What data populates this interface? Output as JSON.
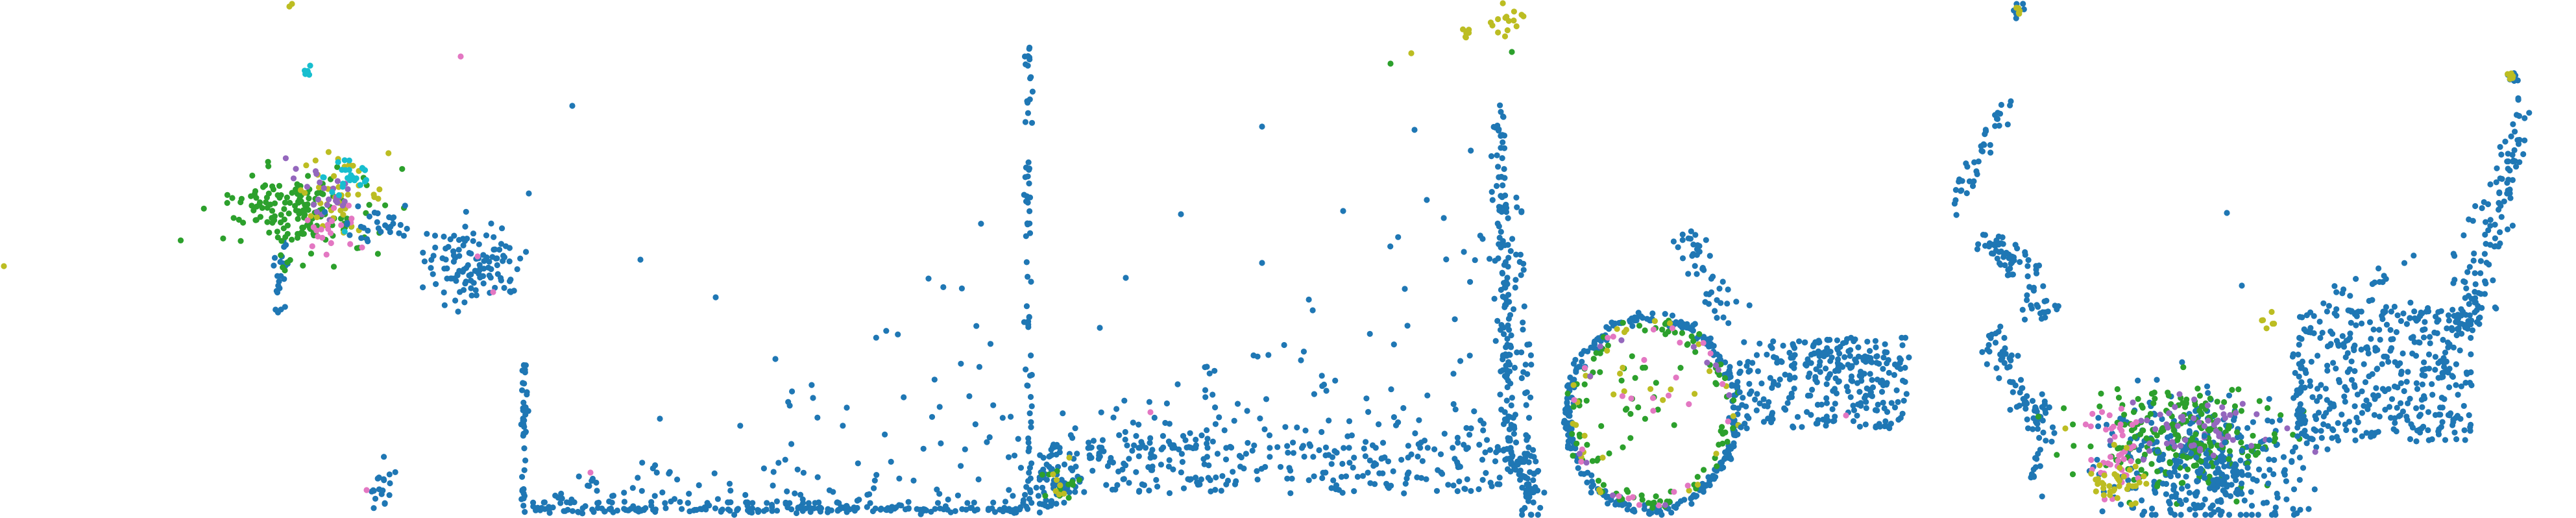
{
  "chart_data": [
    {
      "type": "scatter",
      "title": "",
      "xlabel": "",
      "ylabel": "",
      "grid": false,
      "legend": "none",
      "axes_visible": false,
      "series": [
        {
          "color": "#1f77b4",
          "count": 185
        },
        {
          "color": "#2ca02c",
          "count": 120
        },
        {
          "color": "#bcbd22",
          "count": 40
        },
        {
          "color": "#e377c2",
          "count": 30
        },
        {
          "color": "#9467bd",
          "count": 20
        },
        {
          "color": "#17becf",
          "count": 30
        }
      ]
    },
    {
      "type": "scatter",
      "title": "",
      "xlabel": "",
      "ylabel": "",
      "grid": false,
      "legend": "none",
      "axes_visible": false,
      "series": [
        {
          "color": "#1f77b4",
          "count": 480
        },
        {
          "color": "#e377c2",
          "count": 1
        }
      ]
    },
    {
      "type": "scatter",
      "title": "",
      "xlabel": "",
      "ylabel": "",
      "grid": false,
      "legend": "none",
      "axes_visible": false,
      "series": [
        {
          "color": "#1f77b4",
          "count": 730
        },
        {
          "color": "#2ca02c",
          "count": 20
        },
        {
          "color": "#bcbd22",
          "count": 25
        },
        {
          "color": "#e377c2",
          "count": 6
        }
      ]
    },
    {
      "type": "scatter",
      "title": "",
      "xlabel": "",
      "ylabel": "",
      "grid": false,
      "legend": "none",
      "axes_visible": false,
      "series": [
        {
          "color": "#1f77b4",
          "count": 820
        },
        {
          "color": "#2ca02c",
          "count": 140
        },
        {
          "color": "#bcbd22",
          "count": 55
        },
        {
          "color": "#e377c2",
          "count": 35
        },
        {
          "color": "#9467bd",
          "count": 20
        }
      ]
    },
    {
      "type": "scatter",
      "title": "",
      "xlabel": "",
      "ylabel": "",
      "grid": false,
      "legend": "none",
      "axes_visible": false,
      "series": [
        {
          "color": "#1f77b4",
          "count": 980
        },
        {
          "color": "#2ca02c",
          "count": 240
        },
        {
          "color": "#bcbd22",
          "count": 55
        },
        {
          "color": "#e377c2",
          "count": 55
        },
        {
          "color": "#9467bd",
          "count": 20
        }
      ]
    }
  ]
}
